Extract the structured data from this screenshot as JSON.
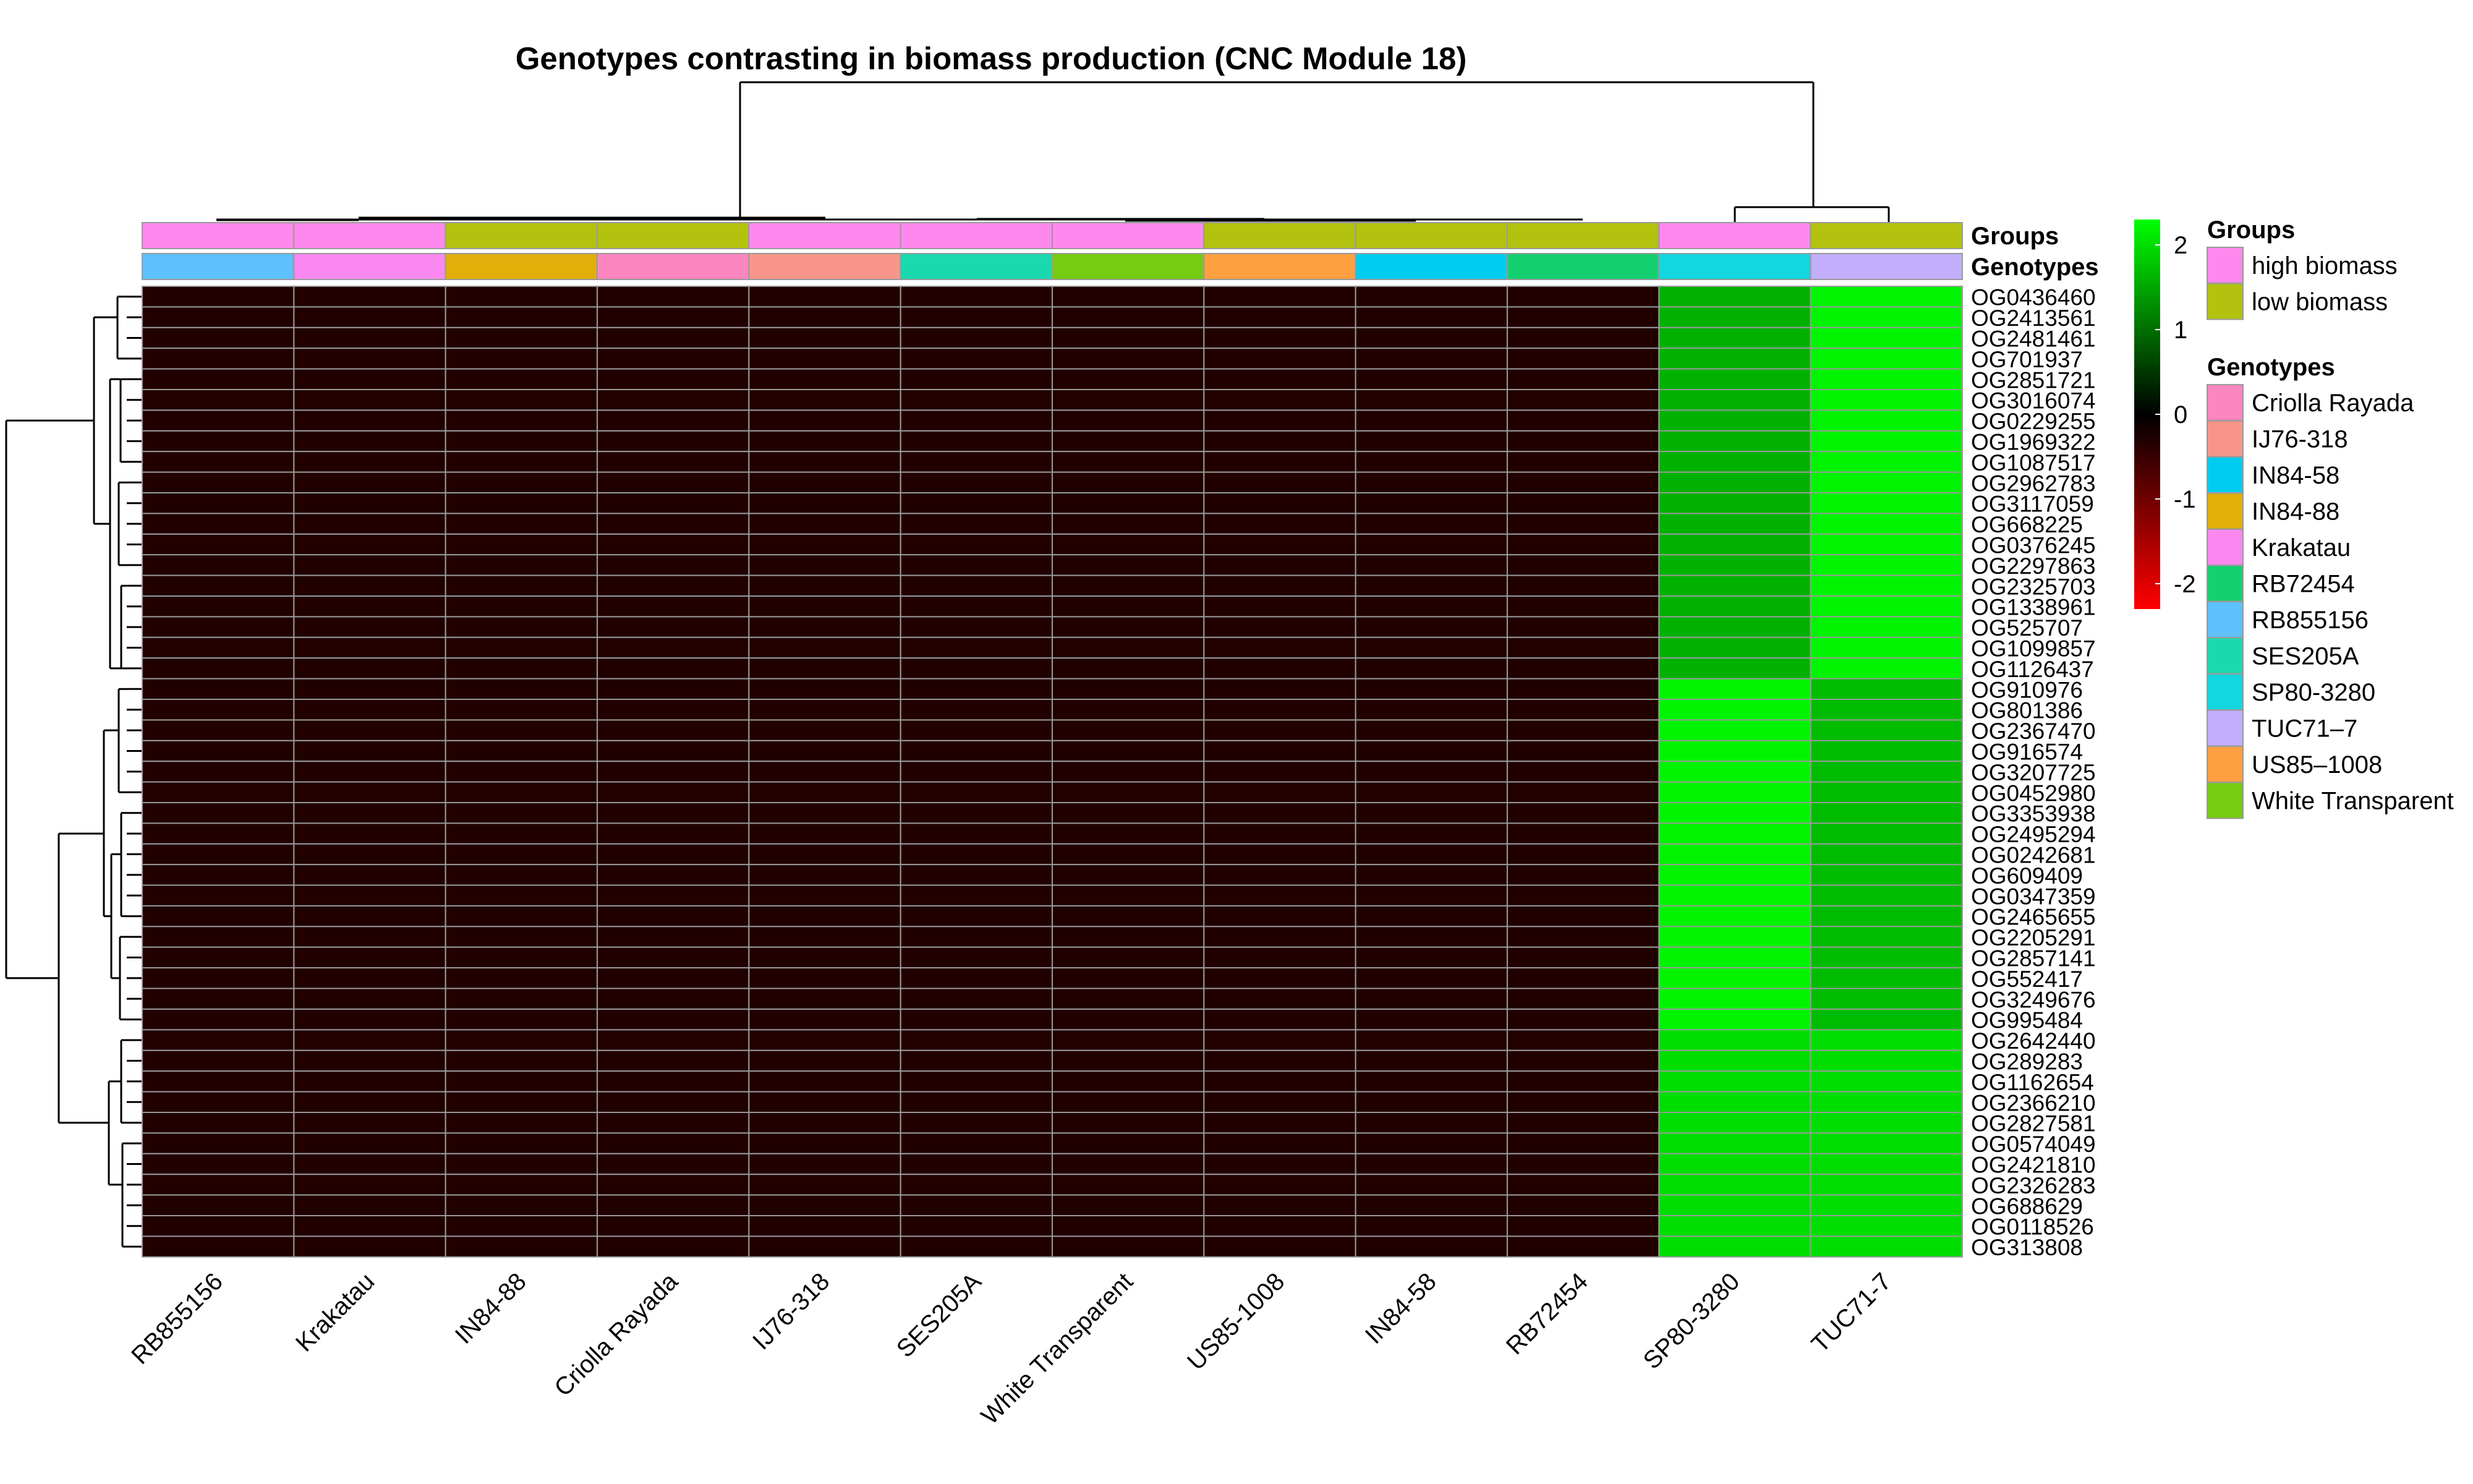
{
  "chart_data": {
    "type": "heatmap",
    "title": "Genotypes contrasting in biomass production (CNC Module 18)",
    "columns": [
      "RB855156",
      "Krakatau",
      "IN84-88",
      "Criolla Rayada",
      "IJ76-318",
      "SES205A",
      "White Transparent",
      "US85-1008",
      "IN84-58",
      "RB72454",
      "SP80-3280",
      "TUC71-7"
    ],
    "rows": [
      "OG0436460",
      "OG2413561",
      "OG2481461",
      "OG701937",
      "OG2851721",
      "OG3016074",
      "OG0229255",
      "OG1969322",
      "OG1087517",
      "OG2962783",
      "OG3117059",
      "OG668225",
      "OG0376245",
      "OG2297863",
      "OG2325703",
      "OG1338961",
      "OG525707",
      "OG1099857",
      "OG1126437",
      "OG910976",
      "OG801386",
      "OG2367470",
      "OG916574",
      "OG3207725",
      "OG0452980",
      "OG3353938",
      "OG2495294",
      "OG0242681",
      "OG609409",
      "OG0347359",
      "OG2465655",
      "OG2205291",
      "OG2857141",
      "OG552417",
      "OG3249676",
      "OG995484",
      "OG2642440",
      "OG289283",
      "OG1162654",
      "OG2366210",
      "OG2827581",
      "OG0574049",
      "OG2421810",
      "OG2326283",
      "OG688629",
      "OG0118526",
      "OG313808"
    ],
    "values": [
      [
        -0.3,
        -0.3,
        -0.3,
        -0.3,
        -0.3,
        -0.3,
        -0.3,
        -0.3,
        -0.3,
        -0.3,
        1.6,
        2.2
      ],
      [
        -0.3,
        -0.3,
        -0.3,
        -0.3,
        -0.3,
        -0.3,
        -0.3,
        -0.3,
        -0.3,
        -0.3,
        1.6,
        2.2
      ],
      [
        -0.3,
        -0.3,
        -0.3,
        -0.3,
        -0.3,
        -0.3,
        -0.3,
        -0.3,
        -0.3,
        -0.3,
        1.6,
        2.2
      ],
      [
        -0.3,
        -0.3,
        -0.3,
        -0.3,
        -0.3,
        -0.3,
        -0.3,
        -0.3,
        -0.3,
        -0.3,
        1.6,
        2.2
      ],
      [
        -0.3,
        -0.3,
        -0.3,
        -0.3,
        -0.3,
        -0.3,
        -0.3,
        -0.3,
        -0.3,
        -0.3,
        1.6,
        2.2
      ],
      [
        -0.3,
        -0.3,
        -0.3,
        -0.3,
        -0.3,
        -0.3,
        -0.3,
        -0.3,
        -0.3,
        -0.3,
        1.6,
        2.2
      ],
      [
        -0.3,
        -0.3,
        -0.3,
        -0.3,
        -0.3,
        -0.3,
        -0.3,
        -0.3,
        -0.3,
        -0.3,
        1.6,
        2.2
      ],
      [
        -0.3,
        -0.3,
        -0.3,
        -0.3,
        -0.3,
        -0.3,
        -0.3,
        -0.3,
        -0.3,
        -0.3,
        1.6,
        2.2
      ],
      [
        -0.3,
        -0.3,
        -0.3,
        -0.3,
        -0.3,
        -0.3,
        -0.3,
        -0.3,
        -0.3,
        -0.3,
        1.6,
        2.2
      ],
      [
        -0.3,
        -0.3,
        -0.3,
        -0.3,
        -0.3,
        -0.3,
        -0.3,
        -0.3,
        -0.3,
        -0.3,
        1.6,
        2.2
      ],
      [
        -0.3,
        -0.3,
        -0.3,
        -0.3,
        -0.3,
        -0.3,
        -0.3,
        -0.3,
        -0.3,
        -0.3,
        1.6,
        2.2
      ],
      [
        -0.3,
        -0.3,
        -0.3,
        -0.3,
        -0.3,
        -0.3,
        -0.3,
        -0.3,
        -0.3,
        -0.3,
        1.6,
        2.2
      ],
      [
        -0.3,
        -0.3,
        -0.3,
        -0.3,
        -0.3,
        -0.3,
        -0.3,
        -0.3,
        -0.3,
        -0.3,
        1.6,
        2.2
      ],
      [
        -0.3,
        -0.3,
        -0.3,
        -0.3,
        -0.3,
        -0.3,
        -0.3,
        -0.3,
        -0.3,
        -0.3,
        1.6,
        2.2
      ],
      [
        -0.3,
        -0.3,
        -0.3,
        -0.3,
        -0.3,
        -0.3,
        -0.3,
        -0.3,
        -0.3,
        -0.3,
        1.6,
        2.2
      ],
      [
        -0.3,
        -0.3,
        -0.3,
        -0.3,
        -0.3,
        -0.3,
        -0.3,
        -0.3,
        -0.3,
        -0.3,
        1.6,
        2.2
      ],
      [
        -0.3,
        -0.3,
        -0.3,
        -0.3,
        -0.3,
        -0.3,
        -0.3,
        -0.3,
        -0.3,
        -0.3,
        1.6,
        2.2
      ],
      [
        -0.3,
        -0.3,
        -0.3,
        -0.3,
        -0.3,
        -0.3,
        -0.3,
        -0.3,
        -0.3,
        -0.3,
        1.6,
        2.2
      ],
      [
        -0.3,
        -0.3,
        -0.3,
        -0.3,
        -0.3,
        -0.3,
        -0.3,
        -0.3,
        -0.3,
        -0.3,
        1.6,
        2.2
      ],
      [
        -0.3,
        -0.3,
        -0.3,
        -0.3,
        -0.3,
        -0.3,
        -0.3,
        -0.3,
        -0.3,
        -0.3,
        2.2,
        1.7
      ],
      [
        -0.3,
        -0.3,
        -0.3,
        -0.3,
        -0.3,
        -0.3,
        -0.3,
        -0.3,
        -0.3,
        -0.3,
        2.2,
        1.7
      ],
      [
        -0.3,
        -0.3,
        -0.3,
        -0.3,
        -0.3,
        -0.3,
        -0.3,
        -0.3,
        -0.3,
        -0.3,
        2.2,
        1.7
      ],
      [
        -0.3,
        -0.3,
        -0.3,
        -0.3,
        -0.3,
        -0.3,
        -0.3,
        -0.3,
        -0.3,
        -0.3,
        2.2,
        1.7
      ],
      [
        -0.3,
        -0.3,
        -0.3,
        -0.3,
        -0.3,
        -0.3,
        -0.3,
        -0.3,
        -0.3,
        -0.3,
        2.2,
        1.7
      ],
      [
        -0.3,
        -0.3,
        -0.3,
        -0.3,
        -0.3,
        -0.3,
        -0.3,
        -0.3,
        -0.3,
        -0.3,
        2.2,
        1.7
      ],
      [
        -0.3,
        -0.3,
        -0.3,
        -0.3,
        -0.3,
        -0.3,
        -0.3,
        -0.3,
        -0.3,
        -0.3,
        2.2,
        1.7
      ],
      [
        -0.3,
        -0.3,
        -0.3,
        -0.3,
        -0.3,
        -0.3,
        -0.3,
        -0.3,
        -0.3,
        -0.3,
        2.2,
        1.7
      ],
      [
        -0.3,
        -0.3,
        -0.3,
        -0.3,
        -0.3,
        -0.3,
        -0.3,
        -0.3,
        -0.3,
        -0.3,
        2.2,
        1.7
      ],
      [
        -0.3,
        -0.3,
        -0.3,
        -0.3,
        -0.3,
        -0.3,
        -0.3,
        -0.3,
        -0.3,
        -0.3,
        2.2,
        1.7
      ],
      [
        -0.3,
        -0.3,
        -0.3,
        -0.3,
        -0.3,
        -0.3,
        -0.3,
        -0.3,
        -0.3,
        -0.3,
        2.2,
        1.7
      ],
      [
        -0.3,
        -0.3,
        -0.3,
        -0.3,
        -0.3,
        -0.3,
        -0.3,
        -0.3,
        -0.3,
        -0.3,
        2.2,
        1.7
      ],
      [
        -0.3,
        -0.3,
        -0.3,
        -0.3,
        -0.3,
        -0.3,
        -0.3,
        -0.3,
        -0.3,
        -0.3,
        2.2,
        1.7
      ],
      [
        -0.3,
        -0.3,
        -0.3,
        -0.3,
        -0.3,
        -0.3,
        -0.3,
        -0.3,
        -0.3,
        -0.3,
        2.2,
        1.7
      ],
      [
        -0.3,
        -0.3,
        -0.3,
        -0.3,
        -0.3,
        -0.3,
        -0.3,
        -0.3,
        -0.3,
        -0.3,
        2.2,
        1.7
      ],
      [
        -0.3,
        -0.3,
        -0.3,
        -0.3,
        -0.3,
        -0.3,
        -0.3,
        -0.3,
        -0.3,
        -0.3,
        2.2,
        1.7
      ],
      [
        -0.3,
        -0.3,
        -0.3,
        -0.3,
        -0.3,
        -0.3,
        -0.3,
        -0.3,
        -0.3,
        -0.3,
        2.2,
        1.7
      ],
      [
        -0.3,
        -0.3,
        -0.3,
        -0.3,
        -0.3,
        -0.3,
        -0.3,
        -0.3,
        -0.3,
        -0.3,
        2.0,
        2.0
      ],
      [
        -0.3,
        -0.3,
        -0.3,
        -0.3,
        -0.3,
        -0.3,
        -0.3,
        -0.3,
        -0.3,
        -0.3,
        2.0,
        2.0
      ],
      [
        -0.3,
        -0.3,
        -0.3,
        -0.3,
        -0.3,
        -0.3,
        -0.3,
        -0.3,
        -0.3,
        -0.3,
        2.0,
        2.0
      ],
      [
        -0.3,
        -0.3,
        -0.3,
        -0.3,
        -0.3,
        -0.3,
        -0.3,
        -0.3,
        -0.3,
        -0.3,
        2.0,
        2.0
      ],
      [
        -0.3,
        -0.3,
        -0.3,
        -0.3,
        -0.3,
        -0.3,
        -0.3,
        -0.3,
        -0.3,
        -0.3,
        2.0,
        2.0
      ],
      [
        -0.3,
        -0.3,
        -0.3,
        -0.3,
        -0.3,
        -0.3,
        -0.3,
        -0.3,
        -0.3,
        -0.3,
        2.0,
        2.0
      ],
      [
        -0.3,
        -0.3,
        -0.3,
        -0.3,
        -0.3,
        -0.3,
        -0.3,
        -0.3,
        -0.3,
        -0.3,
        2.0,
        2.0
      ],
      [
        -0.3,
        -0.3,
        -0.3,
        -0.3,
        -0.3,
        -0.3,
        -0.3,
        -0.3,
        -0.3,
        -0.3,
        2.0,
        2.0
      ],
      [
        -0.3,
        -0.3,
        -0.3,
        -0.3,
        -0.3,
        -0.3,
        -0.3,
        -0.3,
        -0.3,
        -0.3,
        2.0,
        2.0
      ],
      [
        -0.3,
        -0.3,
        -0.3,
        -0.3,
        -0.3,
        -0.3,
        -0.3,
        -0.3,
        -0.3,
        -0.3,
        2.0,
        2.0
      ],
      [
        -0.3,
        -0.3,
        -0.3,
        -0.3,
        -0.3,
        -0.3,
        -0.3,
        -0.3,
        -0.3,
        -0.3,
        2.0,
        2.0
      ]
    ],
    "color_scale": {
      "min": -2.3,
      "max": 2.3,
      "ticks": [
        2,
        1,
        0,
        -1,
        -2
      ],
      "low_color": "#ff0000",
      "mid_color": "#000000",
      "high_color": "#00ff00"
    },
    "annotation_tracks": [
      {
        "name": "Groups",
        "values": [
          "high biomass",
          "high biomass",
          "low biomass",
          "low biomass",
          "high biomass",
          "high biomass",
          "high biomass",
          "low biomass",
          "low biomass",
          "low biomass",
          "high biomass",
          "low biomass"
        ]
      },
      {
        "name": "Genotypes",
        "values": [
          "RB855156",
          "Krakatau",
          "IN84-88",
          "Criolla Rayada",
          "IJ76-318",
          "SES205A",
          "White Transparent",
          "US85-1008",
          "IN84-58",
          "RB72454",
          "SP80-3280",
          "TUC71-7"
        ]
      }
    ],
    "legends": [
      {
        "title": "Groups",
        "items": [
          {
            "label": "high biomass",
            "color": "#ff88ee"
          },
          {
            "label": "low biomass",
            "color": "#b3c20f"
          }
        ]
      },
      {
        "title": "Genotypes",
        "items": [
          {
            "label": "Criolla Rayada",
            "color": "#fb86c0"
          },
          {
            "label": "IJ76-318",
            "color": "#f8958a"
          },
          {
            "label": "IN84-58",
            "color": "#00ccf0"
          },
          {
            "label": "IN84-88",
            "color": "#e2af0a"
          },
          {
            "label": "Krakatau",
            "color": "#fb88f0"
          },
          {
            "label": "RB72454",
            "color": "#15d070"
          },
          {
            "label": "RB855156",
            "color": "#5ec0fd"
          },
          {
            "label": "SES205A",
            "color": "#1bd9af"
          },
          {
            "label": "SP80-3280",
            "color": "#12d6e0"
          },
          {
            "label": "TUC71–7",
            "color": "#c2aefa"
          },
          {
            "label": "US85–1008",
            "color": "#ffa040"
          },
          {
            "label": "White Transparent",
            "color": "#75cc10"
          }
        ]
      }
    ],
    "grid": true,
    "row_dendrogram": true,
    "column_dendrogram": true
  }
}
